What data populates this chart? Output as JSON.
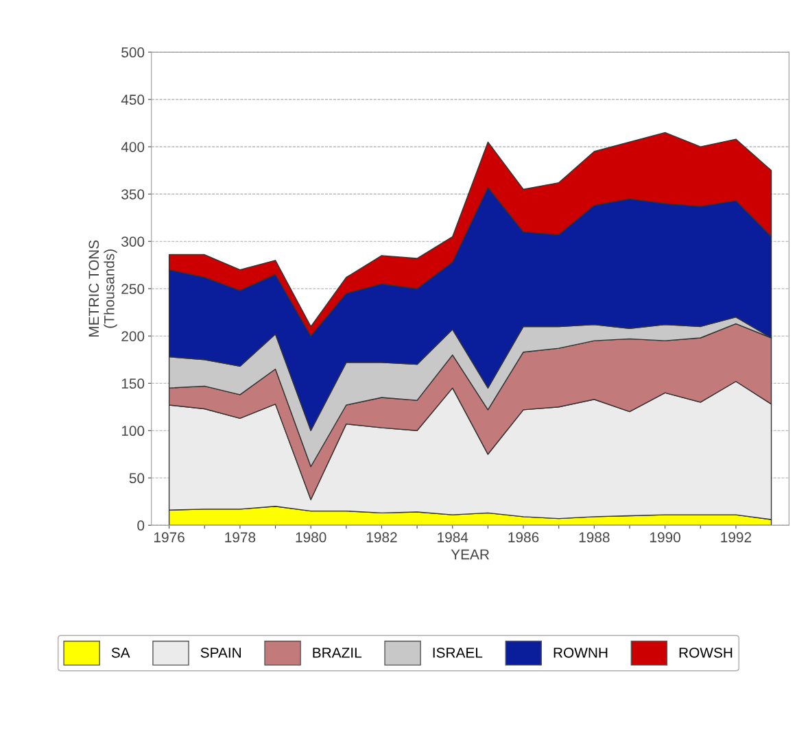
{
  "chart_data": {
    "type": "area",
    "stacked": true,
    "xlabel": "YEAR",
    "ylabel": "METRIC TONS\n(Thousands)",
    "x": [
      1976,
      1977,
      1978,
      1979,
      1980,
      1981,
      1982,
      1983,
      1984,
      1985,
      1986,
      1987,
      1988,
      1989,
      1990,
      1991,
      1992,
      1993
    ],
    "series": [
      {
        "name": "SA",
        "color": "#ffff00",
        "values": [
          16,
          17,
          17,
          20,
          15,
          15,
          13,
          14,
          11,
          13,
          9,
          7,
          9,
          10,
          11,
          11,
          11,
          6
        ]
      },
      {
        "name": "SPAIN",
        "color": "#ebebeb",
        "values": [
          111,
          106,
          96,
          108,
          12,
          92,
          90,
          86,
          134,
          62,
          113,
          118,
          124,
          110,
          129,
          119,
          141,
          122
        ]
      },
      {
        "name": "BRAZIL",
        "color": "#c27a7a",
        "values": [
          18,
          24,
          25,
          37,
          35,
          20,
          32,
          32,
          35,
          47,
          61,
          62,
          62,
          77,
          55,
          68,
          61,
          70
        ]
      },
      {
        "name": "ISRAEL",
        "color": "#c8c8c8",
        "values": [
          33,
          28,
          30,
          37,
          38,
          45,
          37,
          38,
          27,
          23,
          27,
          23,
          17,
          11,
          17,
          12,
          7,
          0
        ]
      },
      {
        "name": "ROWNH",
        "color": "#0a1e9c",
        "values": [
          92,
          87,
          80,
          63,
          100,
          73,
          83,
          80,
          71,
          212,
          100,
          97,
          126,
          137,
          128,
          127,
          123,
          107
        ]
      },
      {
        "name": "ROWSH",
        "color": "#cc0000",
        "values": [
          16,
          24,
          22,
          15,
          10,
          17,
          30,
          32,
          27,
          48,
          45,
          55,
          57,
          60,
          75,
          63,
          65,
          70
        ]
      }
    ],
    "xlim": [
      1975.5,
      1993.5
    ],
    "xticks": [
      1976,
      {
        "value": 1977,
        "label": null
      },
      1978,
      {
        "value": 1979,
        "label": null
      },
      1980,
      {
        "value": 1981,
        "label": null
      },
      1982,
      {
        "value": 1983,
        "label": null
      },
      1984,
      {
        "value": 1985,
        "label": null
      },
      1986,
      {
        "value": 1987,
        "label": null
      },
      1988,
      {
        "value": 1989,
        "label": null
      },
      1990,
      {
        "value": 1991,
        "label": null
      },
      1992
    ],
    "ylim": [
      0,
      500
    ],
    "yticks": [
      0,
      50,
      100,
      150,
      200,
      250,
      300,
      350,
      400,
      450,
      500
    ],
    "grid": "y",
    "legend": "bottom"
  }
}
